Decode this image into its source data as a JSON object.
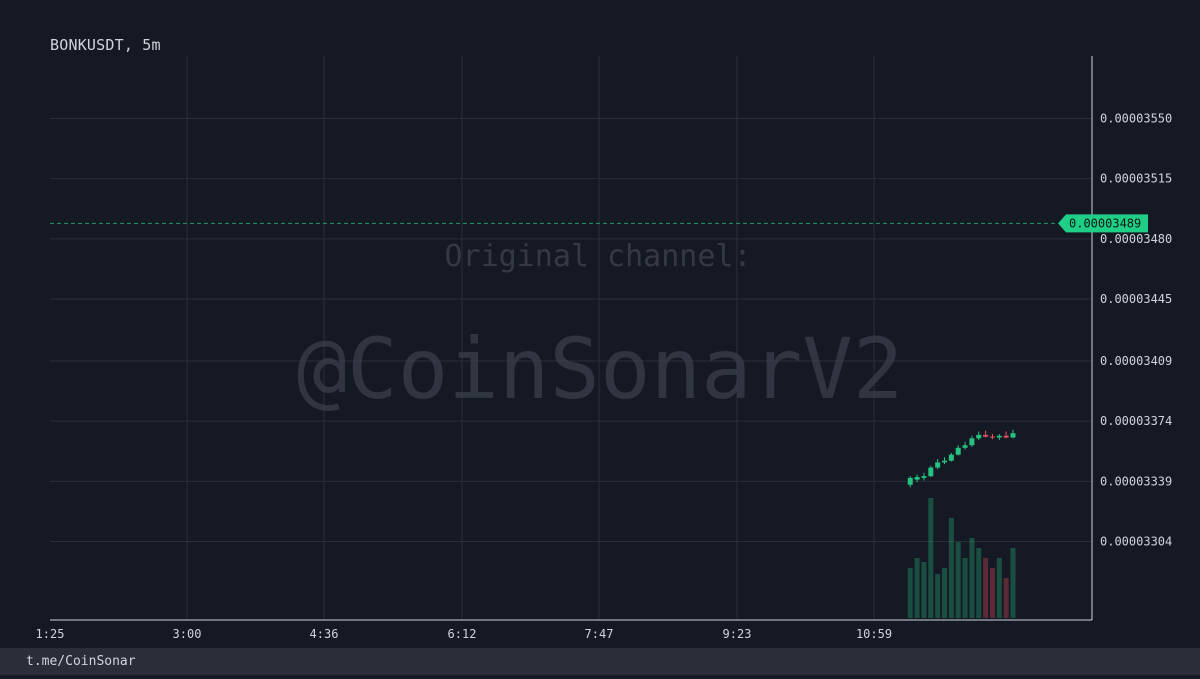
{
  "chart": {
    "title": "BONKUSDT, 5m",
    "footer": "t.me/CoinSonar",
    "watermark_line1": "Original channel:",
    "watermark_line2": "@CoinSonarV2"
  },
  "chart_data": {
    "type": "candlestick",
    "symbol": "BONKUSDT",
    "interval": "5m",
    "x_tick_labels": [
      "1:25",
      "3:00",
      "4:36",
      "6:12",
      "7:47",
      "9:23",
      "10:59"
    ],
    "y_tick_values": [
      3.55e-05,
      3.515e-05,
      3.48e-05,
      3.445e-05,
      3.409e-05,
      3.374e-05,
      3.339e-05,
      3.304e-05
    ],
    "y_tick_labels": [
      "0.00003550",
      "0.00003515",
      "0.00003480",
      "0.00003445",
      "0.00003409",
      "0.00003374",
      "0.00003339",
      "0.00003304"
    ],
    "ylim": [
      3.27e-05,
      3.584e-05
    ],
    "last_price": 3.489e-05,
    "last_price_label": "0.00003489",
    "grid": true,
    "colors": {
      "background": "#151924",
      "up": "#26c281",
      "down": "#f0505f",
      "grid": "#2a2e39",
      "axis": "#cfd3dc",
      "last_price_tag": "#1fcf86"
    },
    "candles": [
      {
        "o": 3.337,
        "h": 3.342,
        "l": 3.3355,
        "c": 3.341,
        "v": 25
      },
      {
        "o": 3.34,
        "h": 3.343,
        "l": 3.3385,
        "c": 3.3415,
        "v": 30
      },
      {
        "o": 3.341,
        "h": 3.344,
        "l": 3.3395,
        "c": 3.342,
        "v": 28
      },
      {
        "o": 3.342,
        "h": 3.348,
        "l": 3.3415,
        "c": 3.347,
        "v": 60
      },
      {
        "o": 3.347,
        "h": 3.352,
        "l": 3.346,
        "c": 3.35,
        "v": 22
      },
      {
        "o": 3.35,
        "h": 3.353,
        "l": 3.349,
        "c": 3.351,
        "v": 25
      },
      {
        "o": 3.351,
        "h": 3.3555,
        "l": 3.3505,
        "c": 3.3545,
        "v": 50
      },
      {
        "o": 3.3545,
        "h": 3.36,
        "l": 3.354,
        "c": 3.3585,
        "v": 38
      },
      {
        "o": 3.3585,
        "h": 3.362,
        "l": 3.3575,
        "c": 3.36,
        "v": 30
      },
      {
        "o": 3.36,
        "h": 3.3655,
        "l": 3.359,
        "c": 3.364,
        "v": 40
      },
      {
        "o": 3.364,
        "h": 3.368,
        "l": 3.363,
        "c": 3.366,
        "v": 35
      },
      {
        "o": 3.366,
        "h": 3.3685,
        "l": 3.3645,
        "c": 3.365,
        "v": 30
      },
      {
        "o": 3.365,
        "h": 3.3665,
        "l": 3.3635,
        "c": 3.3645,
        "v": 25
      },
      {
        "o": 3.3645,
        "h": 3.3665,
        "l": 3.363,
        "c": 3.3655,
        "v": 30
      },
      {
        "o": 3.3655,
        "h": 3.368,
        "l": 3.364,
        "c": 3.3645,
        "v": 20
      },
      {
        "o": 3.3645,
        "h": 3.369,
        "l": 3.364,
        "c": 3.367,
        "v": 35
      }
    ]
  }
}
